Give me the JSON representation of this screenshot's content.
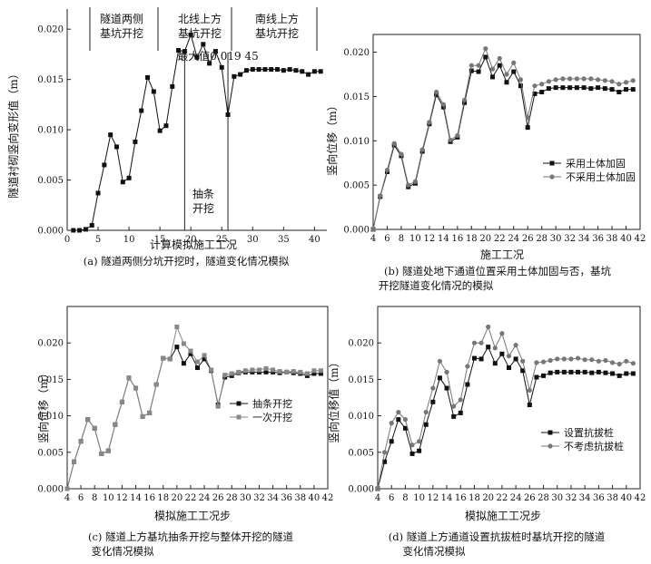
{
  "chart_data": [
    {
      "panel": "a",
      "type": "line",
      "caption": "(a) 隧道两侧分坑开挖时，隧道变化情况模拟",
      "xlabel": "计算模拟施工工况",
      "ylabel": "隧道衬砌竖向变形值（m）",
      "xlim": [
        0,
        42
      ],
      "ylim": [
        0,
        0.022
      ],
      "xticks": [
        "0",
        "5",
        "10",
        "15",
        "20",
        "25",
        "30",
        "35",
        "40"
      ],
      "yticks": [
        "0.000",
        "0.005",
        "0.010",
        "0.015",
        "0.020"
      ],
      "stage_labels": [
        {
          "line1": "隧道两侧",
          "line2": "基坑开挖"
        },
        {
          "line1": "北线上方",
          "line2": "基坑开挖"
        },
        {
          "line1": "南线上方",
          "line2": "基坑开挖"
        }
      ],
      "max_annotation": "最大值0.019 45",
      "strip_annotation": {
        "line1": "抽条",
        "line2": "开挖"
      },
      "series": [
        {
          "marker": "square",
          "color": "#111111",
          "x": [
            1,
            2,
            3,
            4,
            5,
            6,
            7,
            8,
            9,
            10,
            11,
            12,
            13,
            14,
            15,
            16,
            17,
            18,
            19,
            20,
            21,
            22,
            23,
            24,
            25,
            26,
            27,
            28,
            29,
            30,
            31,
            32,
            33,
            34,
            35,
            36,
            37,
            38,
            39,
            40,
            41
          ],
          "y": [
            0.0,
            0.0,
            0.0001,
            0.0005,
            0.0037,
            0.0065,
            0.0095,
            0.0083,
            0.0048,
            0.0052,
            0.0088,
            0.0119,
            0.0152,
            0.0138,
            0.0099,
            0.0104,
            0.0143,
            0.0179,
            0.0178,
            0.01945,
            0.0172,
            0.0185,
            0.0166,
            0.0178,
            0.0162,
            0.0115,
            0.0153,
            0.0155,
            0.0159,
            0.016,
            0.016,
            0.016,
            0.016,
            0.016,
            0.0159,
            0.016,
            0.0159,
            0.0158,
            0.0155,
            0.0158,
            0.0158
          ]
        }
      ]
    },
    {
      "panel": "b",
      "type": "line",
      "caption_line1": "(b) 隧道处地下通道位置采用土体加固与否，基坑",
      "caption_line2": "开挖隧道变化情况的模拟",
      "xlabel": "施工工况",
      "ylabel": "竖向位移（m）",
      "xlim": [
        4,
        42
      ],
      "ylim": [
        0,
        0.022
      ],
      "xticks": [
        "4",
        "6",
        "8",
        "10",
        "12",
        "14",
        "16",
        "18",
        "20",
        "22",
        "24",
        "26",
        "28",
        "30",
        "32",
        "34",
        "36",
        "38",
        "40",
        "42"
      ],
      "yticks": [
        "0.000",
        "0.005",
        "0.010",
        "0.015",
        "0.020"
      ],
      "legend_position": "bottom-right",
      "series": [
        {
          "name": "采用土体加固",
          "marker": "square",
          "color": "#111111",
          "x": [
            4,
            5,
            6,
            7,
            8,
            9,
            10,
            11,
            12,
            13,
            14,
            15,
            16,
            17,
            18,
            19,
            20,
            21,
            22,
            23,
            24,
            25,
            26,
            27,
            28,
            29,
            30,
            31,
            32,
            33,
            34,
            35,
            36,
            37,
            38,
            39,
            40,
            41
          ],
          "y": [
            0.0,
            0.0037,
            0.0065,
            0.0095,
            0.0083,
            0.0048,
            0.0052,
            0.0088,
            0.0119,
            0.0152,
            0.0138,
            0.0099,
            0.0104,
            0.0143,
            0.0179,
            0.0178,
            0.01945,
            0.0172,
            0.0185,
            0.0166,
            0.0178,
            0.0162,
            0.0115,
            0.0153,
            0.0155,
            0.0159,
            0.016,
            0.016,
            0.016,
            0.016,
            0.016,
            0.0159,
            0.016,
            0.0159,
            0.0158,
            0.0155,
            0.0158,
            0.0158
          ]
        },
        {
          "name": "不采用土体加固",
          "marker": "circle",
          "color": "#777777",
          "x": [
            4,
            5,
            6,
            7,
            8,
            9,
            10,
            11,
            12,
            13,
            14,
            15,
            16,
            17,
            18,
            19,
            20,
            21,
            22,
            23,
            24,
            25,
            26,
            27,
            28,
            29,
            30,
            31,
            32,
            33,
            34,
            35,
            36,
            37,
            38,
            39,
            40,
            41
          ],
          "y": [
            0.0,
            0.0038,
            0.0067,
            0.0097,
            0.0085,
            0.005,
            0.0054,
            0.009,
            0.0121,
            0.0155,
            0.0141,
            0.0101,
            0.0106,
            0.0146,
            0.0185,
            0.0185,
            0.0204,
            0.0181,
            0.0193,
            0.0175,
            0.0188,
            0.0169,
            0.0126,
            0.0162,
            0.0164,
            0.0167,
            0.0169,
            0.017,
            0.017,
            0.017,
            0.017,
            0.017,
            0.0169,
            0.0168,
            0.0167,
            0.0164,
            0.0166,
            0.0168
          ]
        }
      ]
    },
    {
      "panel": "c",
      "type": "line",
      "caption_line1": "(c) 隧道上方基坑抽条开挖与整体开挖的隧道",
      "caption_line2": "变化情况模拟",
      "xlabel": "模拟施工工况步",
      "ylabel": "竖向位移（m）",
      "xlim": [
        4,
        42
      ],
      "ylim": [
        0,
        0.025
      ],
      "xticks": [
        "4",
        "6",
        "8",
        "10",
        "12",
        "14",
        "16",
        "18",
        "20",
        "22",
        "24",
        "26",
        "28",
        "30",
        "32",
        "34",
        "36",
        "38",
        "40",
        "42"
      ],
      "yticks": [
        "0.000",
        "0.005",
        "0.010",
        "0.015",
        "0.020"
      ],
      "legend_position": "bottom-right",
      "series": [
        {
          "name": "抽条开挖",
          "marker": "square",
          "color": "#111111",
          "x": [
            4,
            5,
            6,
            7,
            8,
            9,
            10,
            11,
            12,
            13,
            14,
            15,
            16,
            17,
            18,
            19,
            20,
            21,
            22,
            23,
            24,
            25,
            26,
            27,
            28,
            29,
            30,
            31,
            32,
            33,
            34,
            35,
            36,
            37,
            38,
            39,
            40,
            41
          ],
          "y": [
            0.0,
            0.0037,
            0.0065,
            0.0095,
            0.0083,
            0.0048,
            0.0052,
            0.0088,
            0.0119,
            0.0152,
            0.0138,
            0.0099,
            0.0104,
            0.0143,
            0.0179,
            0.0178,
            0.01945,
            0.0172,
            0.0185,
            0.0166,
            0.0178,
            0.0162,
            0.0115,
            0.0153,
            0.0155,
            0.0159,
            0.016,
            0.016,
            0.016,
            0.016,
            0.016,
            0.0159,
            0.016,
            0.0159,
            0.0158,
            0.0155,
            0.0158,
            0.0158
          ]
        },
        {
          "name": "一次开挖",
          "marker": "square",
          "color": "#888888",
          "x": [
            4,
            5,
            6,
            7,
            8,
            9,
            10,
            11,
            12,
            13,
            14,
            15,
            16,
            17,
            18,
            19,
            20,
            21,
            22,
            23,
            24,
            25,
            26,
            27,
            28,
            29,
            30,
            31,
            32,
            33,
            34,
            35,
            36,
            37,
            38,
            39,
            40,
            41
          ],
          "y": [
            0.0,
            0.0037,
            0.0065,
            0.0095,
            0.0083,
            0.0048,
            0.0052,
            0.0088,
            0.0119,
            0.0152,
            0.0138,
            0.0099,
            0.0104,
            0.0143,
            0.0179,
            0.0178,
            0.0222,
            0.0199,
            0.0189,
            0.0174,
            0.0183,
            0.0163,
            0.0113,
            0.0156,
            0.0158,
            0.016,
            0.0162,
            0.0163,
            0.0163,
            0.0165,
            0.0163,
            0.0161,
            0.016,
            0.0161,
            0.016,
            0.0158,
            0.0162,
            0.0162
          ]
        }
      ]
    },
    {
      "panel": "d",
      "type": "line",
      "caption_line1": "(d) 隧道上方通道设置抗拔桩时基坑开挖的隧道",
      "caption_line2": "变化情况模拟",
      "xlabel": "模拟施工工况步",
      "ylabel": "竖向位移值（m）",
      "xlim": [
        4,
        42
      ],
      "ylim": [
        0,
        0.025
      ],
      "xticks": [
        "4",
        "6",
        "8",
        "10",
        "12",
        "14",
        "16",
        "18",
        "20",
        "22",
        "24",
        "26",
        "28",
        "30",
        "32",
        "34",
        "36",
        "38",
        "40",
        "42"
      ],
      "yticks": [
        "0.000",
        "0.005",
        "0.010",
        "0.015",
        "0.020"
      ],
      "legend_position": "bottom-right",
      "series": [
        {
          "name": "设置抗拔桩",
          "marker": "square",
          "color": "#111111",
          "x": [
            4,
            5,
            6,
            7,
            8,
            9,
            10,
            11,
            12,
            13,
            14,
            15,
            16,
            17,
            18,
            19,
            20,
            21,
            22,
            23,
            24,
            25,
            26,
            27,
            28,
            29,
            30,
            31,
            32,
            33,
            34,
            35,
            36,
            37,
            38,
            39,
            40,
            41
          ],
          "y": [
            0.0,
            0.0037,
            0.0065,
            0.0095,
            0.0083,
            0.0048,
            0.0052,
            0.0088,
            0.0119,
            0.0152,
            0.0138,
            0.0099,
            0.0104,
            0.0143,
            0.0179,
            0.0178,
            0.01945,
            0.0172,
            0.0185,
            0.0166,
            0.0178,
            0.0162,
            0.0115,
            0.0153,
            0.0155,
            0.0159,
            0.016,
            0.016,
            0.016,
            0.016,
            0.016,
            0.0159,
            0.016,
            0.0159,
            0.0158,
            0.0155,
            0.0158,
            0.0158
          ]
        },
        {
          "name": "不考虑抗拔桩",
          "marker": "circle",
          "color": "#777777",
          "x": [
            4,
            5,
            6,
            7,
            8,
            9,
            10,
            11,
            12,
            13,
            14,
            15,
            16,
            17,
            18,
            19,
            20,
            21,
            22,
            23,
            24,
            25,
            26,
            27,
            28,
            29,
            30,
            31,
            32,
            33,
            34,
            35,
            36,
            37,
            38,
            39,
            40,
            41
          ],
          "y": [
            0.0,
            0.005,
            0.009,
            0.0105,
            0.0095,
            0.006,
            0.0065,
            0.0105,
            0.0138,
            0.0175,
            0.016,
            0.0113,
            0.0122,
            0.0168,
            0.02,
            0.02,
            0.0222,
            0.0193,
            0.0213,
            0.0182,
            0.0197,
            0.0175,
            0.0135,
            0.0173,
            0.0174,
            0.0176,
            0.0178,
            0.0178,
            0.0178,
            0.0179,
            0.0177,
            0.0177,
            0.0175,
            0.0176,
            0.0173,
            0.0171,
            0.0175,
            0.0172
          ]
        }
      ]
    }
  ]
}
